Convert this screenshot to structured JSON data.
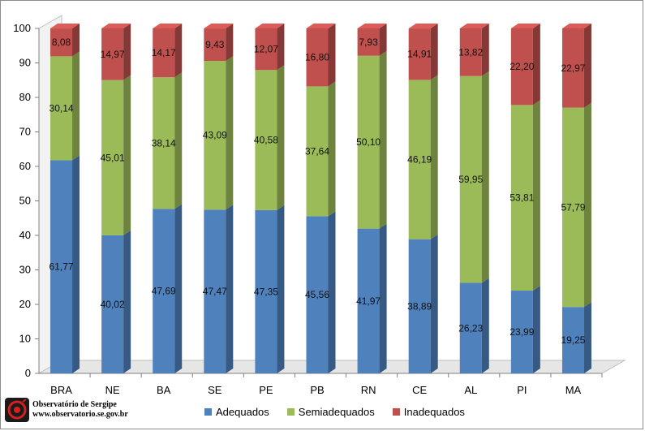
{
  "chart_data": {
    "type": "bar",
    "stacked": true,
    "categories": [
      "BRA",
      "NE",
      "BA",
      "SE",
      "PE",
      "PB",
      "RN",
      "CE",
      "AL",
      "PI",
      "MA"
    ],
    "series": [
      {
        "name": "Adequados",
        "color": "#4f81bd",
        "values": [
          61.77,
          40.02,
          47.69,
          47.47,
          47.35,
          45.56,
          41.97,
          38.89,
          26.23,
          23.99,
          19.25
        ],
        "labels": [
          "61,77",
          "40,02",
          "47,69",
          "47,47",
          "47,35",
          "45,56",
          "41,97",
          "38,89",
          "26,23",
          "23,99",
          "19,25"
        ]
      },
      {
        "name": "Semiadequados",
        "color": "#9bbb59",
        "values": [
          30.14,
          45.01,
          38.14,
          43.09,
          40.58,
          37.64,
          50.1,
          46.19,
          59.95,
          53.81,
          57.79
        ],
        "labels": [
          "30,14",
          "45,01",
          "38,14",
          "43,09",
          "40,58",
          "37,64",
          "50,10",
          "46,19",
          "59,95",
          "53,81",
          "57,79"
        ]
      },
      {
        "name": "Inadequados",
        "color": "#c0504d",
        "values": [
          8.08,
          14.97,
          14.17,
          9.43,
          12.07,
          16.8,
          7.93,
          14.91,
          13.82,
          22.2,
          22.97
        ],
        "labels": [
          "8,08",
          "14,97",
          "14,17",
          "9,43",
          "12,07",
          "16,80",
          "7,93",
          "14,91",
          "13,82",
          "22,20",
          "22,97"
        ]
      }
    ],
    "ylim": [
      0,
      100
    ],
    "yticks": [
      "0",
      "10",
      "20",
      "30",
      "40",
      "50",
      "60",
      "70",
      "80",
      "90",
      "100"
    ],
    "grid": false,
    "legend_position": "bottom"
  },
  "logo": {
    "line1": "Observatório de Sergipe",
    "line2": "www.observatorio.se.gov.br"
  }
}
